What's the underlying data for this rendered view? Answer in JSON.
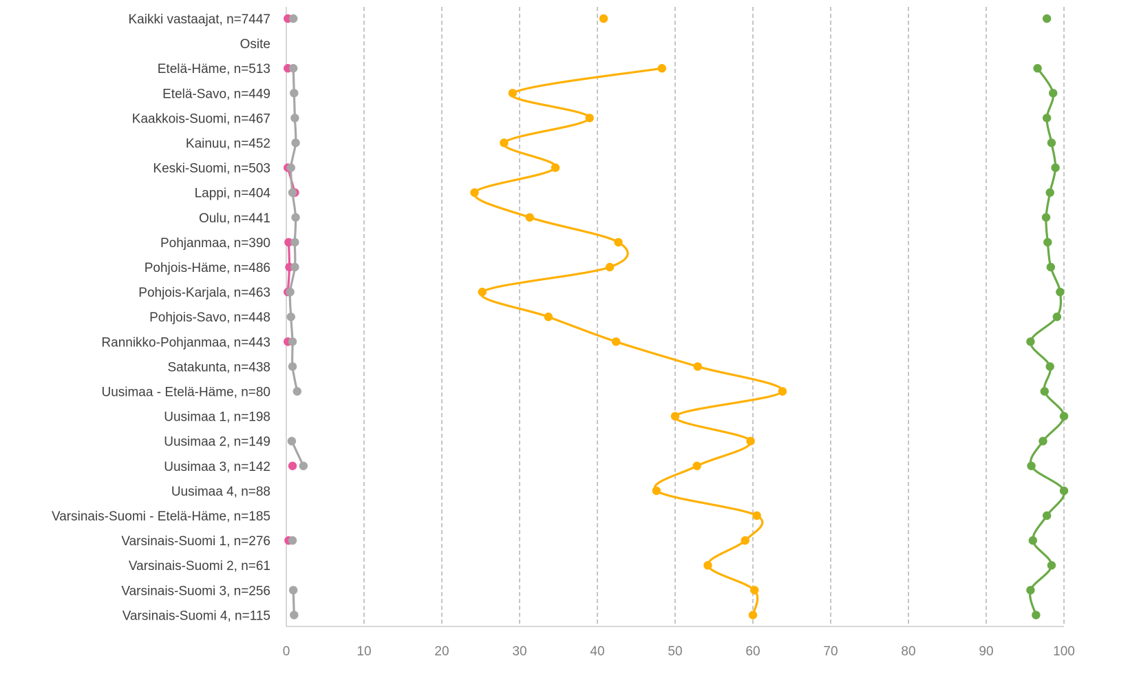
{
  "chart_data": {
    "type": "line",
    "title": "",
    "xlabel": "",
    "ylabel": "",
    "xlim": [
      0,
      100
    ],
    "x_ticks": [
      "0",
      "10",
      "20",
      "30",
      "40",
      "50",
      "60",
      "70",
      "80",
      "90",
      "100"
    ],
    "grid": "vertical dashed",
    "legend": "none",
    "categories": [
      "Kaikki vastaajat, n=7447",
      "Osite",
      "Etelä-Häme, n=513",
      "Etelä-Savo, n=449",
      "Kaakkois-Suomi, n=467",
      "Kainuu, n=452",
      "Keski-Suomi, n=503",
      "Lappi, n=404",
      "Oulu, n=441",
      "Pohjanmaa, n=390",
      "Pohjois-Häme, n=486",
      "Pohjois-Karjala, n=463",
      "Pohjois-Savo, n=448",
      "Rannikko-Pohjanmaa, n=443",
      "Satakunta, n=438",
      "Uusimaa - Etelä-Häme, n=80",
      "Uusimaa 1, n=198",
      "Uusimaa 2, n=149",
      "Uusimaa 3, n=142",
      "Uusimaa 4, n=88",
      "Varsinais-Suomi - Etelä-Häme, n=185",
      "Varsinais-Suomi 1, n=276",
      "Varsinais-Suomi 2, n=61",
      "Varsinais-Suomi 3, n=256",
      "Varsinais-Suomi 4, n=115"
    ],
    "series": [
      {
        "color": "#e8579a",
        "values": [
          0.2,
          null,
          0.2,
          null,
          null,
          null,
          0.2,
          1.1,
          null,
          0.3,
          0.4,
          0.2,
          null,
          0.2,
          null,
          null,
          null,
          null,
          0.8,
          null,
          null,
          0.3,
          null,
          null,
          null
        ]
      },
      {
        "color": "#a6a6a6",
        "values": [
          0.9,
          null,
          0.9,
          1.0,
          1.1,
          1.2,
          0.6,
          0.8,
          1.2,
          1.1,
          1.1,
          0.5,
          0.6,
          0.8,
          0.8,
          1.4,
          null,
          0.7,
          2.2,
          null,
          null,
          0.8,
          null,
          0.9,
          1.0
        ]
      },
      {
        "color": "#ffb000",
        "values": [
          40.8,
          null,
          48.3,
          29.1,
          39.0,
          28.0,
          34.6,
          24.2,
          31.3,
          42.7,
          41.6,
          25.2,
          33.7,
          42.4,
          52.9,
          63.8,
          50.0,
          59.7,
          52.8,
          47.6,
          60.5,
          59.0,
          54.2,
          60.2,
          60.0
        ]
      },
      {
        "color": "#6aaa46",
        "values": [
          97.8,
          null,
          96.6,
          98.6,
          97.8,
          98.4,
          98.9,
          98.2,
          97.7,
          97.9,
          98.3,
          99.5,
          99.1,
          95.7,
          98.2,
          97.5,
          100,
          97.3,
          95.8,
          100,
          97.8,
          96.0,
          98.4,
          95.7,
          96.4
        ]
      }
    ]
  }
}
